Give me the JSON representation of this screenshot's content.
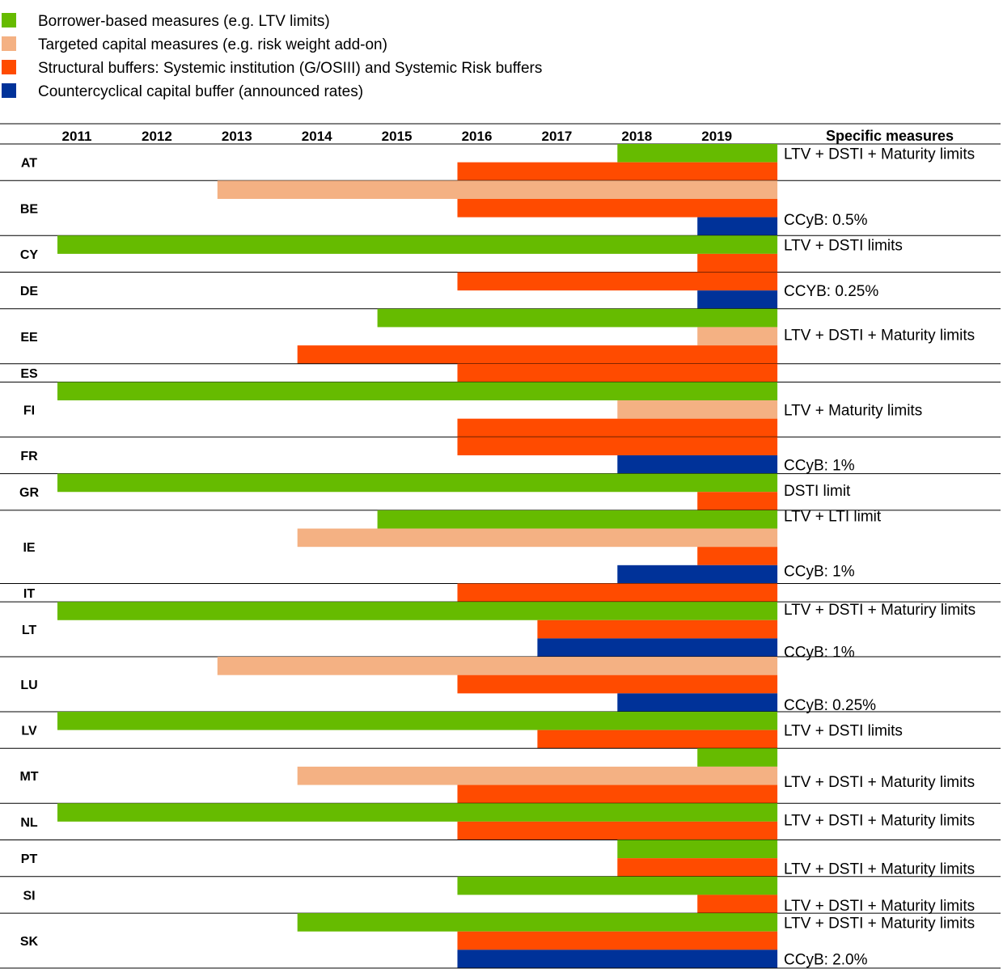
{
  "chart_data": {
    "type": "bar",
    "subtype": "timeline",
    "legend": [
      {
        "key": "bbm",
        "label": "Borrower-based measures (e.g. LTV limits)",
        "color": "#66BB00"
      },
      {
        "key": "tcm",
        "label": "Targeted capital measures (e.g. risk weight add-on)",
        "color": "#F4B183"
      },
      {
        "key": "sb",
        "label": "Structural buffers: Systemic institution (G/OSIII) and Systemic Risk buffers",
        "color": "#FF4B00"
      },
      {
        "key": "ccyb",
        "label": "Countercyclical capital buffer (announced rates)",
        "color": "#003299"
      }
    ],
    "legend_position": "top-left",
    "years": [
      "2011",
      "2012",
      "2013",
      "2014",
      "2015",
      "2016",
      "2017",
      "2018",
      "2019"
    ],
    "x_range": [
      2011,
      2020
    ],
    "specific_header": "Specific measures",
    "countries": [
      {
        "code": "AT",
        "bars": [
          {
            "type": "bbm",
            "start": 2018,
            "end": 2020
          },
          {
            "type": "sb",
            "start": 2016,
            "end": 2020
          }
        ],
        "measures": [
          {
            "text": "LTV + DSTI + Maturity limits",
            "row": 0
          }
        ]
      },
      {
        "code": "BE",
        "bars": [
          {
            "type": "tcm",
            "start": 2013,
            "end": 2020
          },
          {
            "type": "sb",
            "start": 2016,
            "end": 2020
          },
          {
            "type": "ccyb",
            "start": 2019,
            "end": 2020
          }
        ],
        "measures": [
          {
            "text": "CCyB: 0.5%",
            "row": 1.6
          }
        ]
      },
      {
        "code": "CY",
        "bars": [
          {
            "type": "bbm",
            "start": 2011,
            "end": 2020
          },
          {
            "type": "sb",
            "start": 2019,
            "end": 2020
          }
        ],
        "measures": [
          {
            "text": "LTV + DSTI limits",
            "row": 0
          }
        ]
      },
      {
        "code": "DE",
        "bars": [
          {
            "type": "sb",
            "start": 2016,
            "end": 2020
          },
          {
            "type": "ccyb",
            "start": 2019,
            "end": 2020
          }
        ],
        "measures": [
          {
            "text": "CCYB: 0.25%",
            "row": 0.5
          }
        ]
      },
      {
        "code": "EE",
        "bars": [
          {
            "type": "bbm",
            "start": 2015,
            "end": 2020
          },
          {
            "type": "tcm",
            "start": 2019,
            "end": 2020
          },
          {
            "type": "sb",
            "start": 2014,
            "end": 2020
          }
        ],
        "measures": [
          {
            "text": "LTV + DSTI + Maturity limits",
            "row": 0.9
          }
        ]
      },
      {
        "code": "ES",
        "bars": [
          {
            "type": "sb",
            "start": 2016,
            "end": 2020
          }
        ],
        "measures": []
      },
      {
        "code": "FI",
        "bars": [
          {
            "type": "bbm",
            "start": 2011,
            "end": 2020
          },
          {
            "type": "tcm",
            "start": 2018,
            "end": 2020
          },
          {
            "type": "sb",
            "start": 2016,
            "end": 2020
          }
        ],
        "measures": [
          {
            "text": "LTV + Maturity limits",
            "row": 1
          }
        ]
      },
      {
        "code": "FR",
        "bars": [
          {
            "type": "sb",
            "start": 2016,
            "end": 2020
          },
          {
            "type": "ccyb",
            "start": 2018,
            "end": 2020
          }
        ],
        "measures": [
          {
            "text": "CCyB: 1%",
            "row": 1
          }
        ]
      },
      {
        "code": "GR",
        "bars": [
          {
            "type": "bbm",
            "start": 2011,
            "end": 2020
          },
          {
            "type": "sb",
            "start": 2019,
            "end": 2020
          }
        ],
        "measures": [
          {
            "text": "DSTI limit",
            "row": 0.4
          }
        ]
      },
      {
        "code": "IE",
        "bars": [
          {
            "type": "bbm",
            "start": 2015,
            "end": 2020
          },
          {
            "type": "tcm",
            "start": 2014,
            "end": 2020
          },
          {
            "type": "sb",
            "start": 2019,
            "end": 2020
          },
          {
            "type": "ccyb",
            "start": 2018,
            "end": 2020
          }
        ],
        "measures": [
          {
            "text": "LTV + LTI limit",
            "row": -0.2
          },
          {
            "text": "CCyB: 1%",
            "row": 2.8
          }
        ]
      },
      {
        "code": "IT",
        "bars": [
          {
            "type": "sb",
            "start": 2016,
            "end": 2020
          }
        ],
        "measures": []
      },
      {
        "code": "LT",
        "bars": [
          {
            "type": "bbm",
            "start": 2011,
            "end": 2020
          },
          {
            "type": "sb",
            "start": 2017,
            "end": 2020
          },
          {
            "type": "ccyb",
            "start": 2017,
            "end": 2020
          }
        ],
        "measures": [
          {
            "text": "LTV + DSTI + Maturiry limits",
            "row": -0.1
          },
          {
            "text": "CCyB: 1%",
            "row": 2.2
          }
        ]
      },
      {
        "code": "LU",
        "bars": [
          {
            "type": "tcm",
            "start": 2013,
            "end": 2020
          },
          {
            "type": "sb",
            "start": 2016,
            "end": 2020
          },
          {
            "type": "ccyb",
            "start": 2018,
            "end": 2020
          }
        ],
        "measures": [
          {
            "text": "CCyB: 0.25%",
            "row": 2.1
          }
        ]
      },
      {
        "code": "LV",
        "bars": [
          {
            "type": "bbm",
            "start": 2011,
            "end": 2020
          },
          {
            "type": "sb",
            "start": 2017,
            "end": 2020
          }
        ],
        "measures": [
          {
            "text": "LTV + DSTI limits",
            "row": 0.5
          }
        ]
      },
      {
        "code": "MT",
        "bars": [
          {
            "type": "bbm",
            "start": 2019,
            "end": 2020
          },
          {
            "type": "tcm",
            "start": 2014,
            "end": 2020
          },
          {
            "type": "sb",
            "start": 2016,
            "end": 2020
          }
        ],
        "measures": [
          {
            "text": "LTV + DSTI + Maturity limits",
            "row": 1.3
          }
        ]
      },
      {
        "code": "NL",
        "bars": [
          {
            "type": "bbm",
            "start": 2011,
            "end": 2020
          },
          {
            "type": "sb",
            "start": 2016,
            "end": 2020
          }
        ],
        "measures": [
          {
            "text": "LTV + DSTI + Maturity limits",
            "row": 0.4
          }
        ]
      },
      {
        "code": "PT",
        "bars": [
          {
            "type": "bbm",
            "start": 2018,
            "end": 2020
          },
          {
            "type": "sb",
            "start": 2018,
            "end": 2020
          }
        ],
        "measures": [
          {
            "text": "LTV + DSTI + Maturity limits",
            "row": 1.05
          }
        ]
      },
      {
        "code": "SI",
        "bars": [
          {
            "type": "bbm",
            "start": 2016,
            "end": 2020
          },
          {
            "type": "sb",
            "start": 2019,
            "end": 2020
          }
        ],
        "measures": [
          {
            "text": "LTV + DSTI + Maturity limits",
            "row": 1.05
          }
        ]
      },
      {
        "code": "SK",
        "bars": [
          {
            "type": "bbm",
            "start": 2014,
            "end": 2020
          },
          {
            "type": "sb",
            "start": 2016,
            "end": 2020
          },
          {
            "type": "ccyb",
            "start": 2016,
            "end": 2020
          }
        ],
        "measures": [
          {
            "text": "LTV + DSTI + Maturity limits",
            "row": 0
          },
          {
            "text": "CCyB: 2.0%",
            "row": 2
          }
        ]
      }
    ]
  }
}
